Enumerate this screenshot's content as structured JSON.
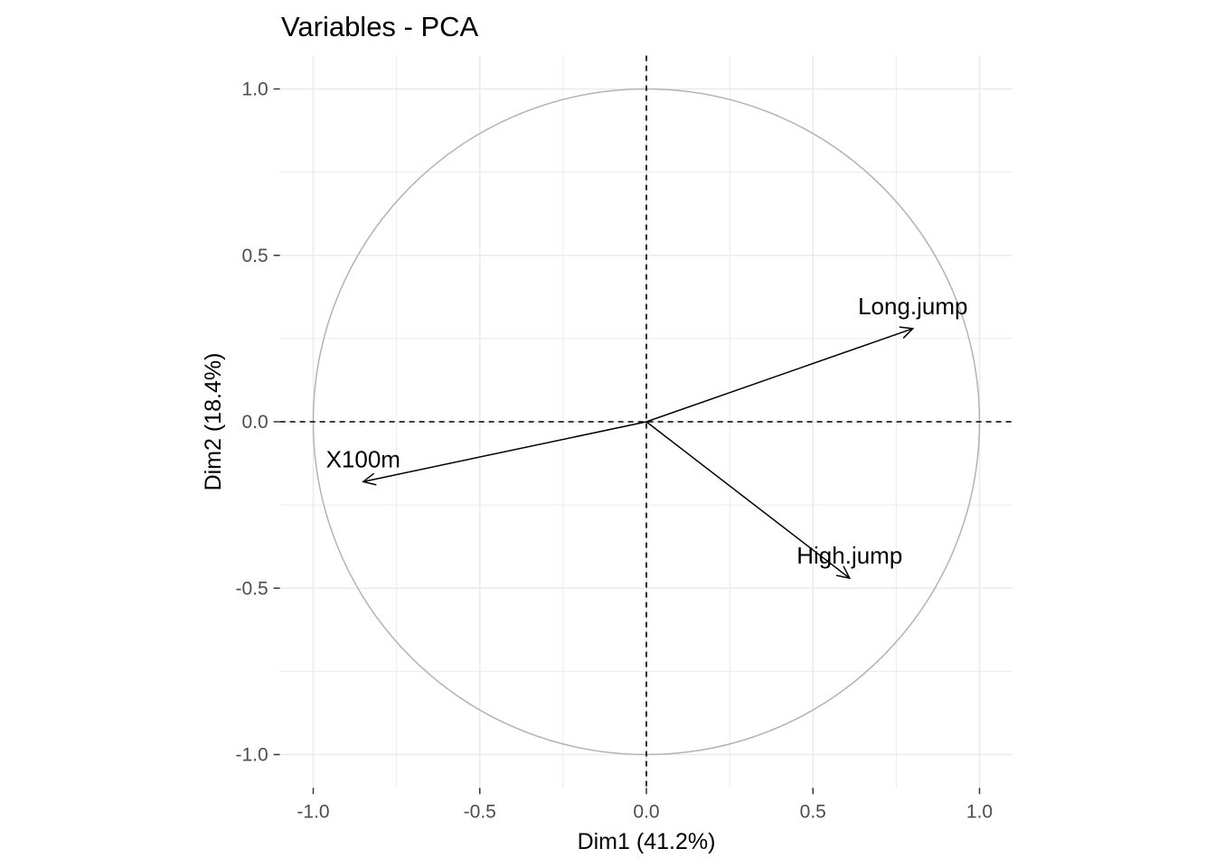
{
  "chart_data": {
    "type": "scatter",
    "title": "Variables - PCA",
    "xlabel": "Dim1 (41.2%)",
    "ylabel": "Dim2 (18.4%)",
    "xlim": [
      -1.1,
      1.1
    ],
    "ylim": [
      -1.1,
      1.1
    ],
    "x_ticks": [
      -1.0,
      -0.5,
      0.0,
      0.5,
      1.0
    ],
    "x_tick_labels": [
      "-1.0",
      "-0.5",
      "0.0",
      "0.5",
      "1.0"
    ],
    "y_ticks": [
      -1.0,
      -0.5,
      0.0,
      0.5,
      1.0
    ],
    "y_tick_labels": [
      "-1.0",
      "-0.5",
      "0.0",
      "0.5",
      "1.0"
    ],
    "grid": true,
    "unit_circle": true,
    "colors": {
      "arrows": "#000000",
      "circle": "#b3b3b3",
      "grid": "#ebebeb"
    },
    "variables": [
      {
        "label": "Long.jump",
        "x": 0.8,
        "y": 0.28
      },
      {
        "label": "X100m",
        "x": -0.85,
        "y": -0.18
      },
      {
        "label": "High.jump",
        "x": 0.61,
        "y": -0.47
      }
    ]
  }
}
